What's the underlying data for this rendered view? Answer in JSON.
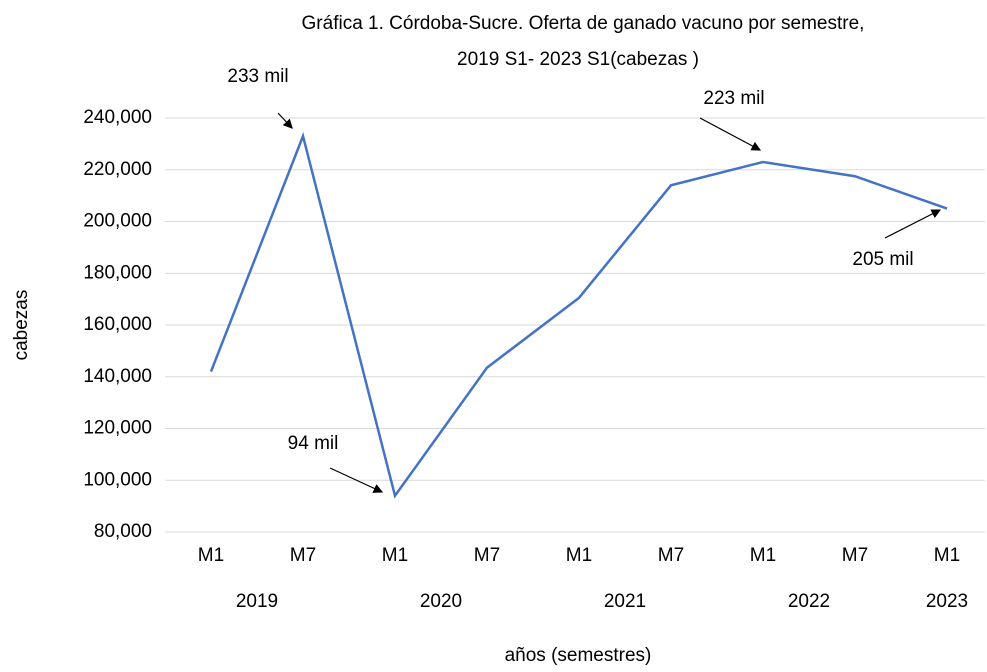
{
  "chart_data": {
    "type": "line",
    "title": "Gráfica 1. Córdoba-Sucre. Oferta de ganado vacuno por semestre,",
    "subtitle": "2019 S1- 2023 S1(cabezas )",
    "y_label": "cabezas",
    "x_label": "años (semestres)",
    "categories": [
      "M1",
      "M7",
      "M1",
      "M7",
      "M1",
      "M7",
      "M1",
      "M7",
      "M1"
    ],
    "category_groups": [
      "2019",
      "2020",
      "2021",
      "2022",
      "2023"
    ],
    "series": [
      {
        "name": "cabezas",
        "color": "#4472c4",
        "values": [
          142000,
          233000,
          94000,
          143500,
          170500,
          214000,
          223000,
          217500,
          205000
        ]
      }
    ],
    "annotations": [
      {
        "text": "233 mil",
        "index": 1
      },
      {
        "text": "94 mil",
        "index": 2
      },
      {
        "text": "223 mil",
        "index": 6
      },
      {
        "text": "205 mil",
        "index": 8
      }
    ],
    "ylim": [
      80000,
      240000
    ],
    "yticks": [
      {
        "value": 80000,
        "label": "80,000"
      },
      {
        "value": 100000,
        "label": "100,000"
      },
      {
        "value": 120000,
        "label": "120,000"
      },
      {
        "value": 140000,
        "label": "140,000"
      },
      {
        "value": 160000,
        "label": "160,000"
      },
      {
        "value": 180000,
        "label": "180,000"
      },
      {
        "value": 200000,
        "label": "200,000"
      },
      {
        "value": 220000,
        "label": "220,000"
      },
      {
        "value": 240000,
        "label": "240,000"
      }
    ],
    "grid": true
  }
}
